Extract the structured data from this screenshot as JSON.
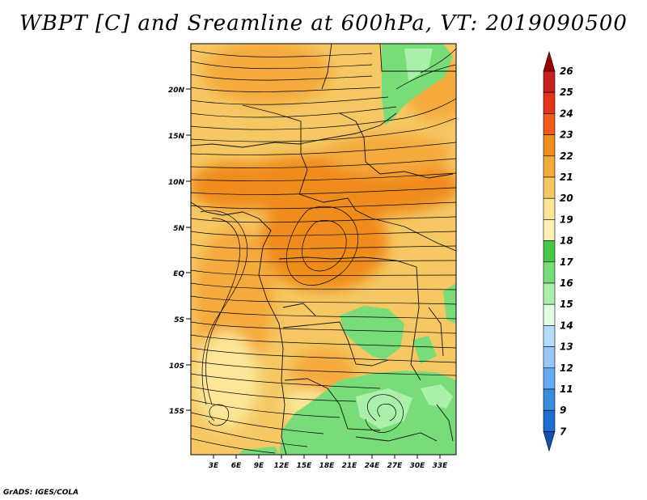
{
  "title": "WBPT [C] and Sreamline at 600hPa, VT: 2019090500",
  "credit": "GrADS: IGES/COLA",
  "map": {
    "lat_labels": [
      "20N",
      "15N",
      "10N",
      "5N",
      "EQ",
      "5S",
      "10S",
      "15S"
    ],
    "lon_labels": [
      "3E",
      "6E",
      "9E",
      "12E",
      "15E",
      "18E",
      "21E",
      "24E",
      "27E",
      "30E",
      "33E"
    ]
  },
  "colorbar": {
    "labels": [
      "26",
      "25",
      "24",
      "23",
      "22",
      "21",
      "20",
      "19",
      "18",
      "17",
      "16",
      "15",
      "14",
      "13",
      "12",
      "11",
      "9",
      "7"
    ],
    "colors": [
      "#a00000",
      "#c81e1e",
      "#e63219",
      "#f05a1e",
      "#f08c1e",
      "#f5aa3c",
      "#f5c864",
      "#fae696",
      "#fff0b4",
      "#48c848",
      "#78dc78",
      "#aaf0aa",
      "#e1ffe1",
      "#b4dcff",
      "#96c8fa",
      "#64aaf0",
      "#3c8cdc",
      "#1e6ed2",
      "#1450b4"
    ]
  }
}
